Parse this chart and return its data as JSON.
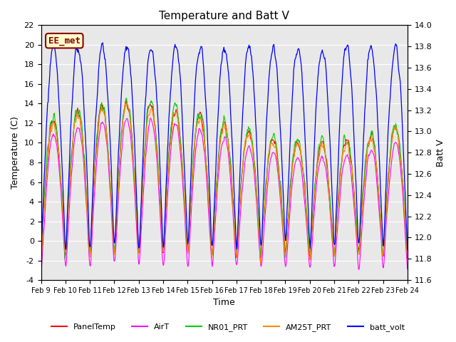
{
  "title": "Temperature and Batt V",
  "xlabel": "Time",
  "ylabel_left": "Temperature (C)",
  "ylabel_right": "Batt V",
  "ylim_left": [
    -4,
    22
  ],
  "ylim_right": [
    11.6,
    14.0
  ],
  "yticks_left": [
    -4,
    -2,
    0,
    2,
    4,
    6,
    8,
    10,
    12,
    14,
    16,
    18,
    20,
    22
  ],
  "yticks_right": [
    11.6,
    11.8,
    12.0,
    12.2,
    12.4,
    12.6,
    12.8,
    13.0,
    13.2,
    13.4,
    13.6,
    13.8,
    14.0
  ],
  "xtick_labels": [
    "Feb 9",
    "Feb 10",
    "Feb 11",
    "Feb 12",
    "Feb 13",
    "Feb 14",
    "Feb 15",
    "Feb 16",
    "Feb 17",
    "Feb 18",
    "Feb 19",
    "Feb 20",
    "Feb 21",
    "Feb 22",
    "Feb 23",
    "Feb 24"
  ],
  "annotation_text": "EE_met",
  "annotation_color": "#8B0000",
  "annotation_bg": "#FFFFCC",
  "background_color": "#E8E8E8",
  "colors": {
    "PanelTemp": "#FF0000",
    "AirT": "#FF00FF",
    "NR01_PRT": "#00CC00",
    "AM25T_PRT": "#FF8800",
    "batt_volt": "#0000FF"
  },
  "legend_labels": [
    "PanelTemp",
    "AirT",
    "NR01_PRT",
    "AM25T_PRT",
    "batt_volt"
  ],
  "num_days": 15,
  "pts_per_day": 48
}
